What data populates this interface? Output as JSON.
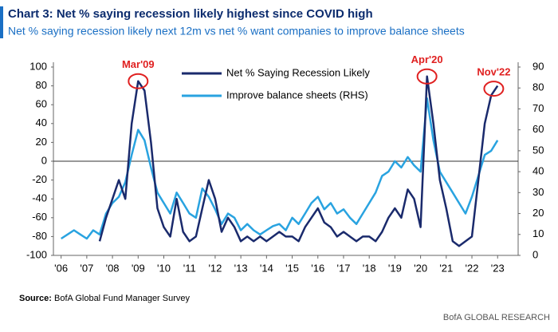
{
  "chart_data": {
    "type": "line",
    "title": "Chart 3: Net % saying recession likely highest since COVID high",
    "subtitle": "Net % saying recession likely next 12m vs net % want companies to improve balance sheets",
    "source_label": "Source:",
    "source": "BofA Global Fund Manager Survey",
    "footer": "BofA GLOBAL RESEARCH",
    "x": [
      2006,
      2006.25,
      2006.5,
      2006.75,
      2007,
      2007.25,
      2007.5,
      2007.75,
      2008,
      2008.25,
      2008.5,
      2008.75,
      2009,
      2009.25,
      2009.5,
      2009.75,
      2010,
      2010.25,
      2010.5,
      2010.75,
      2011,
      2011.25,
      2011.5,
      2011.75,
      2012,
      2012.25,
      2012.5,
      2012.75,
      2013,
      2013.25,
      2013.5,
      2013.75,
      2014,
      2014.25,
      2014.5,
      2014.75,
      2015,
      2015.25,
      2015.5,
      2015.75,
      2016,
      2016.25,
      2016.5,
      2016.75,
      2017,
      2017.25,
      2017.5,
      2017.75,
      2018,
      2018.25,
      2018.5,
      2018.75,
      2019,
      2019.25,
      2019.5,
      2019.75,
      2020,
      2020.25,
      2020.5,
      2020.75,
      2021,
      2021.25,
      2021.5,
      2021.75,
      2022,
      2022.25,
      2022.5,
      2022.75,
      2023
    ],
    "series": [
      {
        "name": "Net % Saying Recession Likely",
        "color": "#1a2a6c",
        "axis": "y",
        "values": [
          null,
          null,
          null,
          null,
          null,
          null,
          -85,
          -60,
          -40,
          -20,
          -40,
          40,
          85,
          75,
          20,
          -50,
          -70,
          -80,
          -40,
          -75,
          -85,
          -80,
          -50,
          -20,
          -40,
          -75,
          -60,
          -70,
          -85,
          -80,
          -85,
          -80,
          -85,
          -80,
          -75,
          -80,
          -80,
          -85,
          -70,
          -60,
          -50,
          -65,
          -70,
          -80,
          -75,
          -80,
          -85,
          -80,
          -80,
          -85,
          -75,
          -60,
          -50,
          -60,
          -30,
          -40,
          -70,
          90,
          40,
          -20,
          -50,
          -85,
          -90,
          -85,
          -80,
          -20,
          40,
          70,
          80
        ]
      },
      {
        "name": "Improve balance sheets (RHS)",
        "color": "#29a3e0",
        "axis": "y2",
        "values": [
          8,
          10,
          12,
          10,
          8,
          12,
          10,
          20,
          25,
          28,
          35,
          48,
          60,
          55,
          42,
          30,
          25,
          20,
          30,
          25,
          20,
          18,
          32,
          28,
          22,
          15,
          20,
          18,
          12,
          15,
          12,
          10,
          12,
          14,
          15,
          12,
          18,
          15,
          20,
          25,
          28,
          22,
          25,
          20,
          22,
          18,
          15,
          20,
          25,
          30,
          38,
          40,
          45,
          42,
          47,
          43,
          40,
          75,
          55,
          40,
          35,
          30,
          25,
          20,
          28,
          38,
          48,
          50,
          55
        ]
      }
    ],
    "xlim": [
      2005.7,
      2023.8
    ],
    "xticks": [
      {
        "value": 2006,
        "label": "'06"
      },
      {
        "value": 2007,
        "label": "'07"
      },
      {
        "value": 2008,
        "label": "'08"
      },
      {
        "value": 2009,
        "label": "'09"
      },
      {
        "value": 2010,
        "label": "'10"
      },
      {
        "value": 2011,
        "label": "'11"
      },
      {
        "value": 2012,
        "label": "'12"
      },
      {
        "value": 2013,
        "label": "'13"
      },
      {
        "value": 2014,
        "label": "'14"
      },
      {
        "value": 2015,
        "label": "'15"
      },
      {
        "value": 2016,
        "label": "'16"
      },
      {
        "value": 2017,
        "label": "'17"
      },
      {
        "value": 2018,
        "label": "'18"
      },
      {
        "value": 2019,
        "label": "'19"
      },
      {
        "value": 2020,
        "label": "'20"
      },
      {
        "value": 2021,
        "label": "'21"
      },
      {
        "value": 2022,
        "label": "'22"
      },
      {
        "value": 2023,
        "label": "'23"
      }
    ],
    "ylim": [
      -100,
      100
    ],
    "yticks": [
      -100,
      -80,
      -60,
      -40,
      -20,
      0,
      20,
      40,
      60,
      80,
      100
    ],
    "y2lim": [
      0,
      90
    ],
    "y2ticks": [
      0,
      10,
      20,
      30,
      40,
      50,
      60,
      70,
      80,
      90
    ],
    "annotations": [
      {
        "text": "Mar'09",
        "x": 2009.0,
        "y": 85
      },
      {
        "text": "Apr'20",
        "x": 2020.25,
        "y": 90
      },
      {
        "text": "Nov'22",
        "x": 2022.85,
        "y": 77
      }
    ],
    "annotation_color": "#e02020"
  }
}
